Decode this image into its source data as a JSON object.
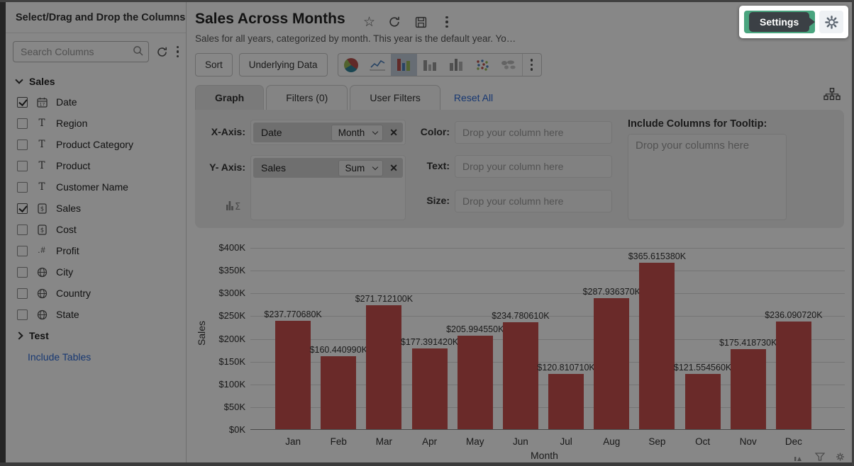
{
  "sidebar": {
    "title": "Select/Drag and Drop the Columns",
    "search": {
      "placeholder": "Search Columns"
    },
    "groups": [
      {
        "label": "Sales",
        "expanded": true,
        "items": [
          {
            "label": "Date",
            "type": "date",
            "checked": true
          },
          {
            "label": "Region",
            "type": "text",
            "checked": false
          },
          {
            "label": "Product Category",
            "type": "text",
            "checked": false
          },
          {
            "label": "Product",
            "type": "text",
            "checked": false
          },
          {
            "label": "Customer Name",
            "type": "text",
            "checked": false
          },
          {
            "label": "Sales",
            "type": "currency",
            "checked": true
          },
          {
            "label": "Cost",
            "type": "currency",
            "checked": false
          },
          {
            "label": "Profit",
            "type": "number",
            "checked": false
          },
          {
            "label": "City",
            "type": "geo",
            "checked": false
          },
          {
            "label": "Country",
            "type": "geo",
            "checked": false
          },
          {
            "label": "State",
            "type": "geo",
            "checked": false
          }
        ]
      },
      {
        "label": "Test",
        "expanded": false,
        "items": []
      }
    ],
    "include_tables_label": "Include Tables"
  },
  "header": {
    "title": "Sales Across Months",
    "description": "Sales for all years, categorized by month. This year is the default year. Yo…"
  },
  "spotlight": {
    "tooltip": "Settings"
  },
  "toolbar": {
    "sort": "Sort",
    "underlying_data": "Underlying Data",
    "selected_chart": "bar-chart"
  },
  "tabs": {
    "items": [
      {
        "label": "Graph",
        "active": true
      },
      {
        "label": "Filters (0)",
        "active": false
      },
      {
        "label": "User Filters",
        "active": false
      }
    ],
    "reset_all": "Reset All"
  },
  "builder": {
    "x_axis_label": "X-Axis:",
    "x_field": "Date",
    "x_function": "Month",
    "y_axis_label": "Y- Axis:",
    "y_field": "Sales",
    "y_function": "Sum",
    "color_label": "Color:",
    "text_label": "Text:",
    "size_label": "Size:",
    "drop_column_placeholder": "Drop your column here",
    "tooltip_section_label": "Include Columns for Tooltip:",
    "drop_columns_placeholder": "Drop your columns here"
  },
  "chart_data": {
    "type": "bar",
    "categories": [
      "Jan",
      "Feb",
      "Mar",
      "Apr",
      "May",
      "Jun",
      "Jul",
      "Aug",
      "Sep",
      "Oct",
      "Nov",
      "Dec"
    ],
    "values": [
      237.77068,
      160.44099,
      271.7121,
      177.39142,
      205.99455,
      234.78061,
      120.81071,
      287.93637,
      365.61538,
      121.55456,
      175.41873,
      236.09072
    ],
    "value_labels": [
      "$237.770680K",
      "$160.440990K",
      "$271.712100K",
      "$177.391420K",
      "$205.994550K",
      "$234.780610K",
      "$120.810710K",
      "$287.936370K",
      "$365.615380K",
      "$121.554560K",
      "$175.418730K",
      "$236.090720K"
    ],
    "xlabel": "Month",
    "ylabel": "Sales",
    "ylim": [
      0,
      400
    ],
    "ytick_step": 50,
    "ytick_prefix": "$",
    "ytick_suffix": "K",
    "grid": true,
    "legend": false,
    "bar_color": "#c9504e"
  },
  "colors": {
    "accent_green": "#4aa57f",
    "link_blue": "#2e6bd8",
    "selected_chart_bg": "#c2cfdb"
  }
}
